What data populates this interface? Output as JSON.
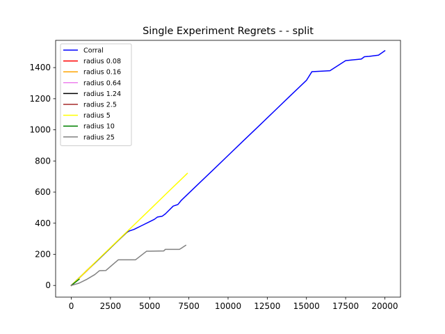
{
  "chart_data": {
    "type": "line",
    "title": "Single Experiment Regrets -  - split",
    "xlabel": "",
    "ylabel": "",
    "xlim": [
      -1000,
      21000
    ],
    "ylim": [
      -75,
      1575
    ],
    "x_ticks": [
      0,
      2500,
      5000,
      7500,
      10000,
      12500,
      15000,
      17500,
      20000
    ],
    "y_ticks": [
      0,
      200,
      400,
      600,
      800,
      1000,
      1200,
      1400
    ],
    "grid": false,
    "legend_position": "upper-left",
    "series": [
      {
        "name": "Corral",
        "color": "#0000ff",
        "x": [
          0,
          500,
          1000,
          1500,
          2000,
          2500,
          3000,
          3500,
          3700,
          4000,
          4500,
          5000,
          5300,
          5500,
          5800,
          6000,
          6500,
          6800,
          7000,
          8000,
          9000,
          10000,
          11000,
          12000,
          13000,
          14000,
          15000,
          15350,
          16000,
          16500,
          17500,
          18500,
          18700,
          19000,
          19600,
          20000
        ],
        "y": [
          0,
          48,
          96,
          144,
          193,
          242,
          291,
          340,
          350,
          360,
          385,
          410,
          425,
          440,
          445,
          460,
          510,
          520,
          545,
          642,
          738,
          835,
          932,
          1028,
          1125,
          1222,
          1318,
          1374,
          1377,
          1380,
          1445,
          1455,
          1470,
          1472,
          1480,
          1508
        ]
      },
      {
        "name": "radius 0.08",
        "color": "#ff0000",
        "x": [
          0,
          400,
          800,
          1150
        ],
        "y": [
          0,
          38,
          76,
          110
        ]
      },
      {
        "name": "radius 0.16",
        "color": "#ffa500",
        "x": [
          0,
          700,
          1400
        ],
        "y": [
          0,
          67,
          134
        ]
      },
      {
        "name": "radius 0.64",
        "color": "#ee82ee",
        "x": [
          0,
          600,
          1200
        ],
        "y": [
          0,
          58,
          115
        ]
      },
      {
        "name": "radius 1.24",
        "color": "#000000",
        "x": [
          0,
          1000,
          2000,
          3000,
          3600
        ],
        "y": [
          0,
          97,
          193,
          290,
          347
        ]
      },
      {
        "name": "radius 2.5",
        "color": "#a52a2a",
        "x": [
          0,
          700,
          1400
        ],
        "y": [
          0,
          68,
          136
        ]
      },
      {
        "name": "radius 5",
        "color": "#ffff00",
        "x": [
          0,
          1000,
          2000,
          3000,
          4000,
          5000,
          6000,
          7000,
          7400
        ],
        "y": [
          0,
          97,
          195,
          292,
          389,
          486,
          584,
          681,
          720
        ]
      },
      {
        "name": "radius 10",
        "color": "#008000",
        "x": [
          0,
          500
        ],
        "y": [
          0,
          40
        ]
      },
      {
        "name": "radius 25",
        "color": "#808080",
        "x": [
          0,
          500,
          1000,
          1500,
          1800,
          2200,
          3000,
          3500,
          4100,
          4800,
          5000,
          5900,
          6000,
          6900,
          7000,
          7300
        ],
        "y": [
          0,
          15,
          40,
          70,
          95,
          96,
          165,
          165,
          165,
          220,
          220,
          222,
          232,
          232,
          238,
          258
        ]
      }
    ]
  }
}
